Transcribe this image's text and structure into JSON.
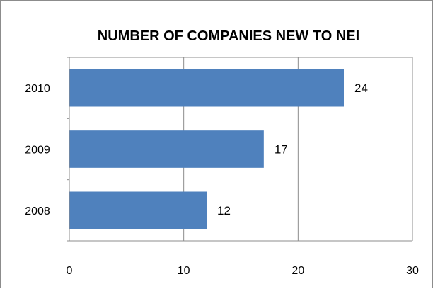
{
  "chart_data": {
    "type": "bar",
    "orientation": "horizontal",
    "title": "NUMBER OF COMPANIES NEW TO NEI",
    "categories": [
      "2008",
      "2009",
      "2010"
    ],
    "values": [
      12,
      17,
      24
    ],
    "data_labels": [
      "12",
      "17",
      "24"
    ],
    "xlim": [
      0,
      30
    ],
    "x_ticks": [
      0,
      10,
      20,
      30
    ],
    "x_tick_labels": [
      "0",
      "10",
      "20",
      "30"
    ],
    "xlabel": "",
    "ylabel": "",
    "grid": true,
    "legend": "none",
    "colors": {
      "bar": "#4f81bd",
      "grid": "#8c8c8c",
      "axis": "#8c8c8c"
    }
  }
}
